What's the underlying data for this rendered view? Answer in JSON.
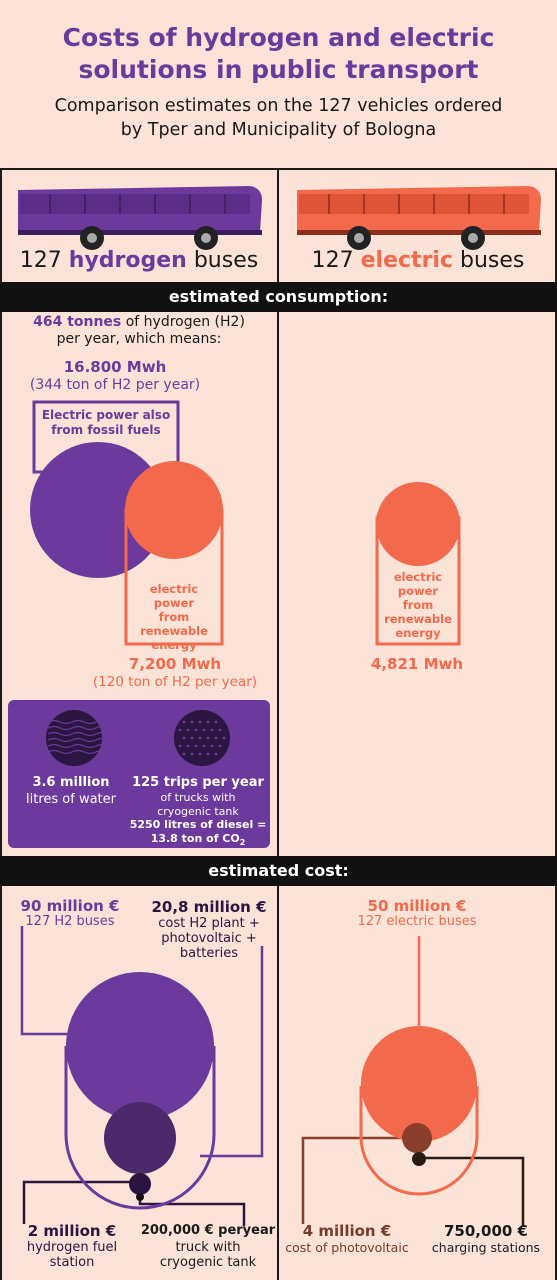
{
  "header": {
    "title_line1": "Costs of hydrogen and electric",
    "title_line2": "solutions in public transport",
    "subtitle_line1": "Comparison estimates on the 127 vehicles ordered",
    "subtitle_line2": "by Tper and Municipality of Bologna"
  },
  "buses": {
    "hydrogen_count": "127",
    "hydrogen_word": "hydrogen",
    "hydrogen_suffix": "buses",
    "electric_count": "127",
    "electric_word": "electric",
    "electric_suffix": "buses"
  },
  "consumption": {
    "bar_label": "estimated consumption:",
    "h2_tonnes": "464 tonnes",
    "h2_tonnes_rest": "of hydrogen (H2)",
    "h2_tonnes_line2": "per year, which means:",
    "fossil_mwh": "16.800 Mwh",
    "fossil_sub": "(344 ton of H2 per year)",
    "fossil_label_line1": "Electric power also",
    "fossil_label_line2": "from fossil fuels",
    "renew_label_line1": "electric power",
    "renew_label_line2": "from",
    "renew_label_line3": "renewable",
    "renew_label_line4": "energy",
    "renew_mwh": "7,200 Mwh",
    "renew_sub": "(120 ton of H2 per year)",
    "elec_label_line1": "electric",
    "elec_label_line2": "power",
    "elec_label_line3": "from",
    "elec_label_line4": "renewable",
    "elec_label_line5": "energy",
    "elec_mwh": "4,821 Mwh",
    "water_value": "3.6 million",
    "water_label": "litres of water",
    "trips_value": "125 trips per year",
    "trips_line1": "of trucks with",
    "trips_line2": "cryogenic tank",
    "trips_line3": "5250 litres of diesel =",
    "trips_line4": "13.8 ton of CO",
    "trips_sub2": "2"
  },
  "cost": {
    "bar_label": "estimated cost:",
    "h2_buses_value": "90 million €",
    "h2_buses_label": "127 H2 buses",
    "h2_plant_value": "20,8 million €",
    "h2_plant_line1": "cost H2 plant +",
    "h2_plant_line2": "photovoltaic +",
    "h2_plant_line3": "batteries",
    "station_value": "2 million €",
    "station_line1": "hydrogen fuel",
    "station_line2": "station",
    "truck_value": "200,000 € peryear",
    "truck_line1": "truck with",
    "truck_line2": "cryogenic tank",
    "e_buses_value": "50 million €",
    "e_buses_label": "127 electric buses",
    "pv_value": "4 million €",
    "pv_label": "cost of photovoltaic",
    "charging_value": "750,000 €",
    "charging_label": "charging stations"
  },
  "colors": {
    "purple": "#6b3a9c",
    "dark_purple": "#4a2a6a",
    "orange": "#f26a4b",
    "brown": "#8a3e2c",
    "background": "#fbe3d8"
  }
}
